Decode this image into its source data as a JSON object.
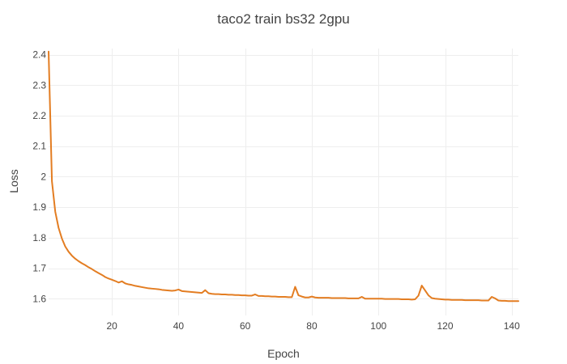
{
  "chart_data": {
    "type": "line",
    "title": "taco2 train bs32 2gpu",
    "xlabel": "Epoch",
    "ylabel": "Loss",
    "xlim": [
      1,
      142
    ],
    "ylim": [
      1.545,
      2.42
    ],
    "x_ticks": [
      20,
      40,
      60,
      80,
      100,
      120,
      140
    ],
    "y_ticks": [
      1.6,
      1.7,
      1.8,
      1.9,
      2.0,
      2.1,
      2.2,
      2.3,
      2.4
    ],
    "y_tick_labels": [
      "1.6",
      "1.7",
      "1.8",
      "1.9",
      "2",
      "2.1",
      "2.2",
      "2.3",
      "2.4"
    ],
    "grid": true,
    "legend": false,
    "series": [
      {
        "color": "#e37d22",
        "x": [
          1,
          2,
          3,
          4,
          5,
          6,
          7,
          8,
          9,
          10,
          11,
          12,
          13,
          14,
          15,
          16,
          17,
          18,
          19,
          20,
          21,
          22,
          23,
          24,
          25,
          26,
          27,
          28,
          29,
          30,
          31,
          32,
          33,
          34,
          35,
          36,
          37,
          38,
          39,
          40,
          41,
          42,
          43,
          44,
          45,
          46,
          47,
          48,
          49,
          50,
          51,
          52,
          53,
          54,
          55,
          56,
          57,
          58,
          59,
          60,
          61,
          62,
          63,
          64,
          65,
          66,
          67,
          68,
          69,
          70,
          71,
          72,
          73,
          74,
          75,
          76,
          77,
          78,
          79,
          80,
          81,
          82,
          83,
          84,
          85,
          86,
          87,
          88,
          89,
          90,
          91,
          92,
          93,
          94,
          95,
          96,
          97,
          98,
          99,
          100,
          101,
          102,
          103,
          104,
          105,
          106,
          107,
          108,
          109,
          110,
          111,
          112,
          113,
          114,
          115,
          116,
          117,
          118,
          119,
          120,
          121,
          122,
          123,
          124,
          125,
          126,
          127,
          128,
          129,
          130,
          131,
          132,
          133,
          134,
          135,
          136,
          137,
          138,
          139,
          140,
          141,
          142
        ],
        "y": [
          2.41,
          1.985,
          1.885,
          1.832,
          1.797,
          1.771,
          1.754,
          1.741,
          1.731,
          1.723,
          1.716,
          1.71,
          1.703,
          1.697,
          1.69,
          1.684,
          1.678,
          1.671,
          1.666,
          1.662,
          1.658,
          1.653,
          1.657,
          1.65,
          1.647,
          1.645,
          1.642,
          1.64,
          1.638,
          1.636,
          1.634,
          1.633,
          1.632,
          1.631,
          1.629,
          1.628,
          1.627,
          1.626,
          1.627,
          1.63,
          1.625,
          1.624,
          1.623,
          1.622,
          1.621,
          1.62,
          1.619,
          1.628,
          1.618,
          1.616,
          1.615,
          1.615,
          1.614,
          1.614,
          1.613,
          1.613,
          1.612,
          1.612,
          1.611,
          1.611,
          1.61,
          1.61,
          1.614,
          1.609,
          1.609,
          1.608,
          1.608,
          1.607,
          1.607,
          1.606,
          1.606,
          1.606,
          1.605,
          1.605,
          1.639,
          1.611,
          1.607,
          1.604,
          1.604,
          1.607,
          1.604,
          1.603,
          1.603,
          1.603,
          1.603,
          1.602,
          1.602,
          1.602,
          1.602,
          1.602,
          1.601,
          1.601,
          1.601,
          1.601,
          1.606,
          1.6,
          1.6,
          1.6,
          1.6,
          1.6,
          1.6,
          1.599,
          1.599,
          1.599,
          1.599,
          1.599,
          1.598,
          1.598,
          1.598,
          1.597,
          1.598,
          1.61,
          1.643,
          1.627,
          1.611,
          1.602,
          1.6,
          1.599,
          1.598,
          1.597,
          1.597,
          1.596,
          1.596,
          1.596,
          1.596,
          1.595,
          1.595,
          1.595,
          1.595,
          1.595,
          1.594,
          1.594,
          1.594,
          1.606,
          1.601,
          1.594,
          1.593,
          1.593,
          1.592,
          1.592,
          1.592,
          1.592
        ]
      }
    ]
  }
}
